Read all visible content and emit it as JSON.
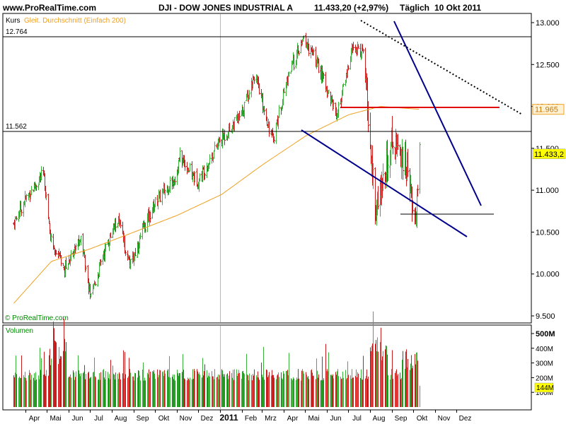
{
  "header": {
    "site": "www.ProRealTime.com",
    "symbol": "DJI - DOW JONES INDUSTRIAL A",
    "quote": "11.433,20 (+2,97%)",
    "period": "Täglich",
    "date": "10 Okt 2011"
  },
  "price_panel": {
    "legend_price": "Kurs",
    "legend_ma": "Gleit. Durchschnitt (Einfach 200)",
    "copyright": "© ProRealTime.com",
    "ref_line_upper": "12.764",
    "ref_line_lower": "11.562",
    "ma_value_tag": "11.965",
    "last_price_tag": "11.433,2"
  },
  "volume_panel": {
    "legend": "Volumen",
    "last_volume_tag": "144M"
  },
  "colors": {
    "up": "#3cb43c",
    "down": "#c81e1e",
    "ma": "#f0a020",
    "trendline": "#00008c",
    "resistance": "#e00000",
    "ma_tag_bg": "#fff2d4",
    "price_tag_bg": "#ffff00"
  },
  "chart_data": {
    "type": "candlestick",
    "period": "daily",
    "x_ticks": [
      "Apr",
      "Mai",
      "Jun",
      "Jul",
      "Aug",
      "Sep",
      "Okt",
      "Nov",
      "Dez",
      "2011",
      "Feb",
      "Mrz",
      "Apr",
      "Mai",
      "Jun",
      "Jul",
      "Aug",
      "Sep",
      "Okt",
      "Nov",
      "Dez"
    ],
    "y_ticks_price": [
      "9.500",
      "10.000",
      "10.500",
      "11.000",
      "11.500",
      "12.000",
      "12.500",
      "13.000"
    ],
    "y_ticks_volume": [
      "100M",
      "200M",
      "300M",
      "400M",
      "500M"
    ],
    "price_close_approx": [
      [
        "2010-03-15",
        10600
      ],
      [
        "2010-04-01",
        10900
      ],
      [
        "2010-04-26",
        11200
      ],
      [
        "2010-05-07",
        10400
      ],
      [
        "2010-05-25",
        10050
      ],
      [
        "2010-06-18",
        10450
      ],
      [
        "2010-07-02",
        9700
      ],
      [
        "2010-07-20",
        10250
      ],
      [
        "2010-08-09",
        10650
      ],
      [
        "2010-08-27",
        10100
      ],
      [
        "2010-09-15",
        10550
      ],
      [
        "2010-10-01",
        10850
      ],
      [
        "2010-10-29",
        11150
      ],
      [
        "2010-11-05",
        11400
      ],
      [
        "2010-11-30",
        11100
      ],
      [
        "2010-12-31",
        11580
      ],
      [
        "2011-01-31",
        11900
      ],
      [
        "2011-02-18",
        12380
      ],
      [
        "2011-03-16",
        11600
      ],
      [
        "2011-04-08",
        12400
      ],
      [
        "2011-04-29",
        12800
      ],
      [
        "2011-05-16",
        12550
      ],
      [
        "2011-06-15",
        11900
      ],
      [
        "2011-07-07",
        12700
      ],
      [
        "2011-07-22",
        12650
      ],
      [
        "2011-08-08",
        10800
      ],
      [
        "2011-08-31",
        11600
      ],
      [
        "2011-09-15",
        11450
      ],
      [
        "2011-09-30",
        10900
      ],
      [
        "2011-10-04",
        10650
      ],
      [
        "2011-10-10",
        11433.2
      ]
    ],
    "ma200_approx": [
      [
        "2010-03-15",
        9650
      ],
      [
        "2010-05-07",
        10150
      ],
      [
        "2010-07-01",
        10300
      ],
      [
        "2010-09-01",
        10500
      ],
      [
        "2010-11-01",
        10700
      ],
      [
        "2011-01-03",
        10950
      ],
      [
        "2011-03-01",
        11300
      ],
      [
        "2011-05-02",
        11650
      ],
      [
        "2011-07-01",
        11900
      ],
      [
        "2011-08-15",
        12000
      ],
      [
        "2011-10-10",
        11965
      ]
    ],
    "volume_approx": [
      [
        "2010-05",
        "high"
      ],
      [
        "2010-07",
        "avg"
      ],
      [
        "2011-01",
        "avg"
      ],
      [
        "2011-08-05",
        "480M"
      ],
      [
        "2011-10-10",
        "144M"
      ]
    ],
    "annotations": [
      {
        "type": "horizontal",
        "value": 12764
      },
      {
        "type": "horizontal",
        "value": 11562
      },
      {
        "type": "horizontal",
        "value": 11400,
        "from": "2011-06-05",
        "to": "2011-10-20",
        "color": "red"
      },
      {
        "type": "horizontal",
        "value": 10600,
        "from": "2011-07-20",
        "to": "2011-10-28",
        "color": "black"
      },
      {
        "type": "trendline",
        "from": [
          "2011-03-16",
          11600
        ],
        "to": [
          "2011-10-15",
          10360
        ]
      },
      {
        "type": "trendline",
        "from": [
          "2011-07-10",
          13000
        ],
        "to": [
          "2011-10-20",
          10700
        ]
      },
      {
        "type": "trendline",
        "from": [
          "2011-06-15",
          13000
        ],
        "to": [
          "2011-12-20",
          11700
        ],
        "style": "dotted"
      }
    ]
  }
}
